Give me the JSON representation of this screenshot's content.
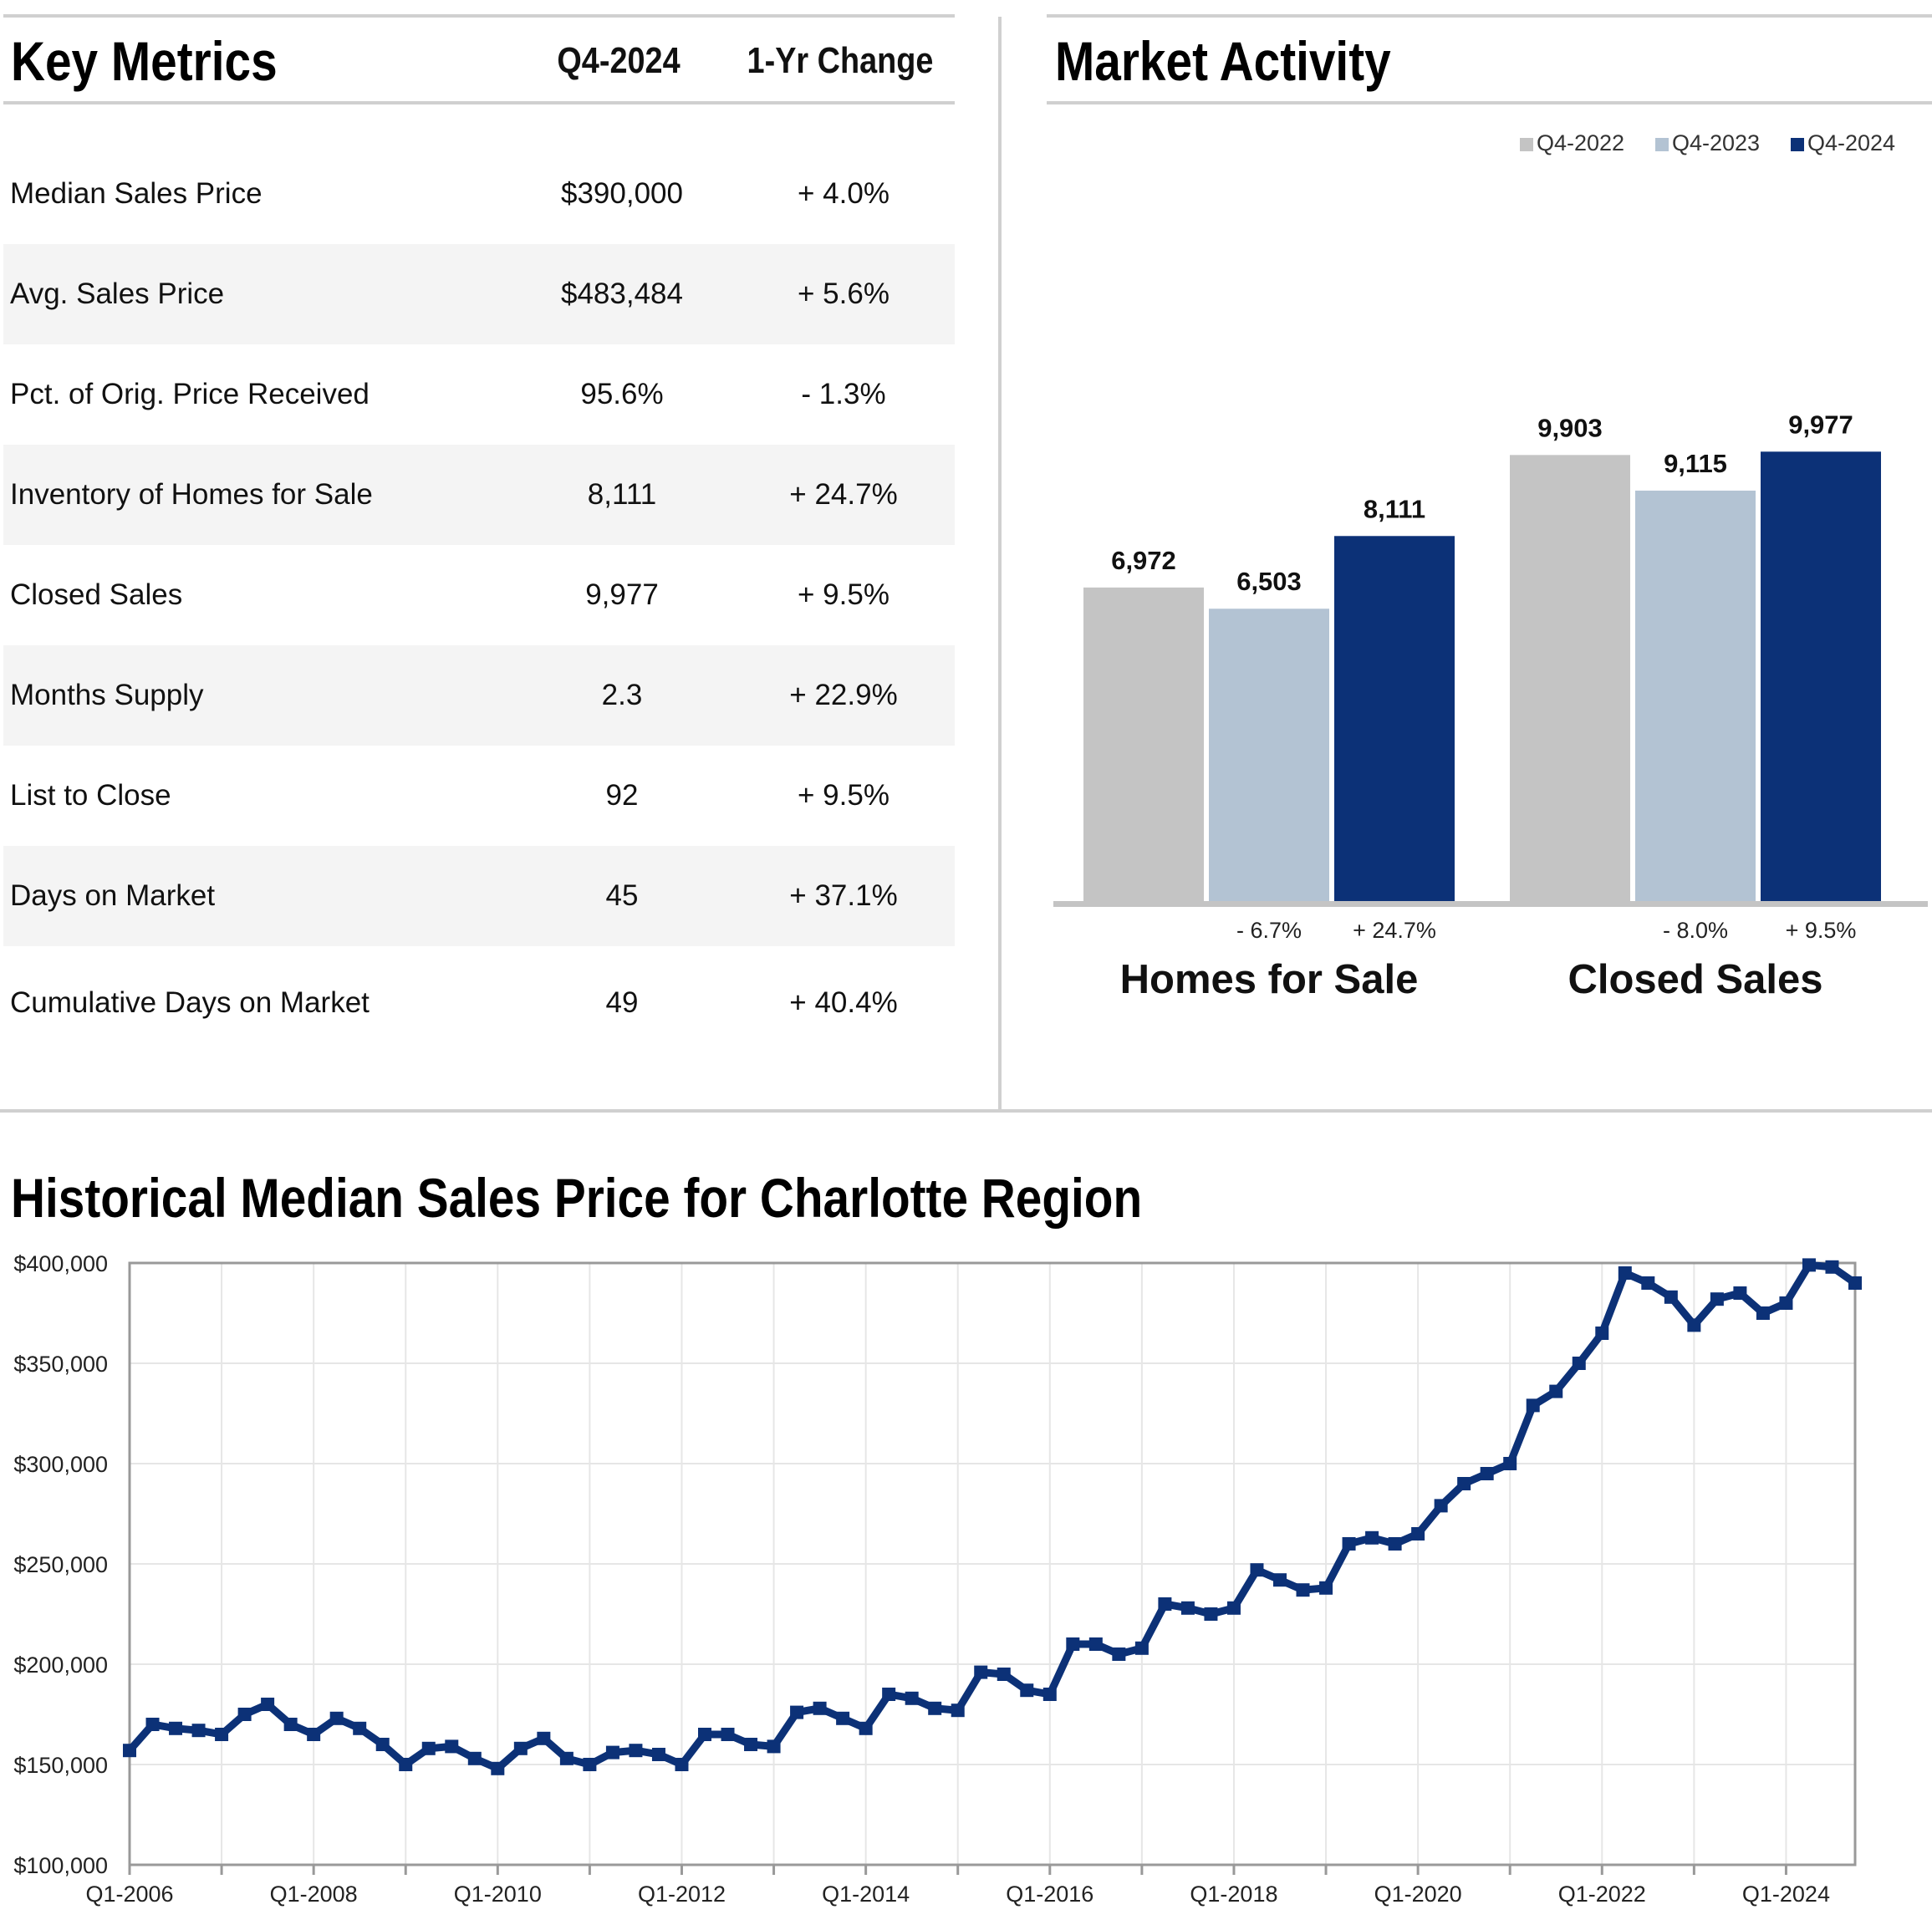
{
  "key_metrics": {
    "title": "Key Metrics",
    "col_value": "Q4-2024",
    "col_change": "1-Yr Change",
    "rows": [
      {
        "label": "Median Sales Price",
        "value": "$390,000",
        "change": "+ 4.0%"
      },
      {
        "label": "Avg. Sales Price",
        "value": "$483,484",
        "change": "+ 5.6%"
      },
      {
        "label": "Pct. of Orig. Price Received",
        "value": "95.6%",
        "change": "- 1.3%"
      },
      {
        "label": "Inventory of Homes for Sale",
        "value": "8,111",
        "change": "+ 24.7%"
      },
      {
        "label": "Closed Sales",
        "value": "9,977",
        "change": "+ 9.5%"
      },
      {
        "label": "Months Supply",
        "value": "2.3",
        "change": "+ 22.9%"
      },
      {
        "label": "List to Close",
        "value": "92",
        "change": "+ 9.5%"
      },
      {
        "label": "Days on Market",
        "value": "45",
        "change": "+ 37.1%"
      },
      {
        "label": "Cumulative Days on Market",
        "value": "49",
        "change": "+ 40.4%"
      }
    ]
  },
  "market_activity": {
    "title": "Market Activity"
  },
  "historical": {
    "title": "Historical Median Sales Price for Charlotte Region"
  },
  "colors": {
    "q4_2022": "#c4c4c4",
    "q4_2023": "#b3c3d3",
    "q4_2024": "#0c3177",
    "line": "#0c3177",
    "axis": "#999999",
    "grid": "#e6e6e6"
  },
  "chart_data": [
    {
      "type": "bar",
      "title": "Market Activity",
      "categories": [
        "Homes for Sale",
        "Closed Sales"
      ],
      "series": [
        {
          "name": "Q4-2022",
          "values": [
            6972,
            9903
          ],
          "labels": [
            "6,972",
            "9,903"
          ]
        },
        {
          "name": "Q4-2023",
          "values": [
            6503,
            9115
          ],
          "labels": [
            "6,503",
            "9,115"
          ]
        },
        {
          "name": "Q4-2024",
          "values": [
            8111,
            9977
          ],
          "labels": [
            "8,111",
            "9,977"
          ]
        }
      ],
      "change_labels": [
        [
          "- 6.7%",
          "+ 24.7%"
        ],
        [
          "- 8.0%",
          "+ 9.5%"
        ]
      ],
      "legend_position": "top-right",
      "ylim": [
        0,
        11000
      ]
    },
    {
      "type": "line",
      "title": "Historical Median Sales Price for Charlotte Region",
      "x": [
        "Q1-2006",
        "Q2-2006",
        "Q3-2006",
        "Q4-2006",
        "Q1-2007",
        "Q2-2007",
        "Q3-2007",
        "Q4-2007",
        "Q1-2008",
        "Q2-2008",
        "Q3-2008",
        "Q4-2008",
        "Q1-2009",
        "Q2-2009",
        "Q3-2009",
        "Q4-2009",
        "Q1-2010",
        "Q2-2010",
        "Q3-2010",
        "Q4-2010",
        "Q1-2011",
        "Q2-2011",
        "Q3-2011",
        "Q4-2011",
        "Q1-2012",
        "Q2-2012",
        "Q3-2012",
        "Q4-2012",
        "Q1-2013",
        "Q2-2013",
        "Q3-2013",
        "Q4-2013",
        "Q1-2014",
        "Q2-2014",
        "Q3-2014",
        "Q4-2014",
        "Q1-2015",
        "Q2-2015",
        "Q3-2015",
        "Q4-2015",
        "Q1-2016",
        "Q2-2016",
        "Q3-2016",
        "Q4-2016",
        "Q1-2017",
        "Q2-2017",
        "Q3-2017",
        "Q4-2017",
        "Q1-2018",
        "Q2-2018",
        "Q3-2018",
        "Q4-2018",
        "Q1-2019",
        "Q2-2019",
        "Q3-2019",
        "Q4-2019",
        "Q1-2020",
        "Q2-2020",
        "Q3-2020",
        "Q4-2020",
        "Q1-2021",
        "Q2-2021",
        "Q3-2021",
        "Q4-2021",
        "Q1-2022",
        "Q2-2022",
        "Q3-2022",
        "Q4-2022",
        "Q1-2023",
        "Q2-2023",
        "Q3-2023",
        "Q4-2023",
        "Q1-2024",
        "Q2-2024",
        "Q3-2024",
        "Q4-2024"
      ],
      "values": [
        157000,
        170000,
        168000,
        167000,
        165000,
        175000,
        180000,
        170000,
        165000,
        173000,
        168000,
        160000,
        150000,
        158000,
        159000,
        153000,
        148000,
        158000,
        163000,
        153000,
        150000,
        156000,
        157000,
        155000,
        150000,
        165000,
        165000,
        160000,
        159000,
        176000,
        178000,
        173000,
        168000,
        185000,
        183000,
        178000,
        177000,
        196000,
        195000,
        187000,
        185000,
        210000,
        210000,
        205000,
        208000,
        230000,
        228000,
        225000,
        228000,
        247000,
        242000,
        237000,
        238000,
        260000,
        263000,
        260000,
        265000,
        279000,
        290000,
        295000,
        300000,
        329000,
        336000,
        350000,
        365000,
        395000,
        390000,
        383000,
        369000,
        382000,
        385000,
        375000,
        380000,
        399000,
        398000,
        390000
      ],
      "xticks": [
        "Q1-2006",
        "Q1-2008",
        "Q1-2010",
        "Q1-2012",
        "Q1-2014",
        "Q1-2016",
        "Q1-2018",
        "Q1-2020",
        "Q1-2022",
        "Q1-2024"
      ],
      "yticks": [
        100000,
        150000,
        200000,
        250000,
        300000,
        350000,
        400000
      ],
      "ytick_labels": [
        "$100,000",
        "$150,000",
        "$200,000",
        "$250,000",
        "$300,000",
        "$350,000",
        "$400,000"
      ],
      "ylim": [
        100000,
        400000
      ],
      "grid": true
    }
  ]
}
